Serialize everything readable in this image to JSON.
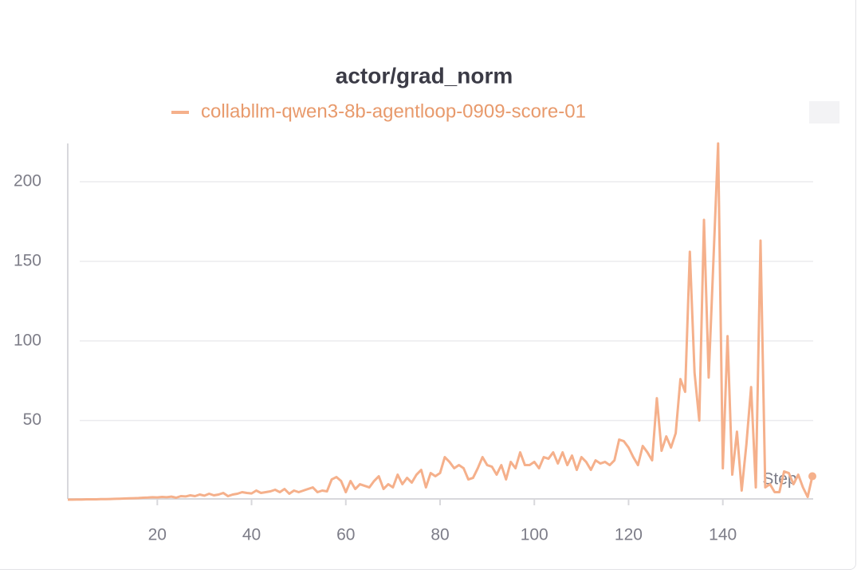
{
  "chart_data": {
    "type": "line",
    "title": "actor/grad_norm",
    "x_label": "Step",
    "xlim": [
      1,
      159
    ],
    "ylim": [
      0,
      224
    ],
    "xticks": [
      20,
      40,
      60,
      80,
      100,
      120,
      140
    ],
    "yticks": [
      50,
      100,
      150,
      200
    ],
    "grid": true,
    "x": [
      1,
      2,
      3,
      4,
      5,
      6,
      7,
      8,
      9,
      10,
      11,
      12,
      13,
      14,
      15,
      16,
      17,
      18,
      19,
      20,
      21,
      22,
      23,
      24,
      25,
      26,
      27,
      28,
      29,
      30,
      31,
      32,
      33,
      34,
      35,
      36,
      37,
      38,
      39,
      40,
      41,
      42,
      43,
      44,
      45,
      46,
      47,
      48,
      49,
      50,
      51,
      52,
      53,
      54,
      55,
      56,
      57,
      58,
      59,
      60,
      61,
      62,
      63,
      64,
      65,
      66,
      67,
      68,
      69,
      70,
      71,
      72,
      73,
      74,
      75,
      76,
      77,
      78,
      79,
      80,
      81,
      82,
      83,
      84,
      85,
      86,
      87,
      88,
      89,
      90,
      91,
      92,
      93,
      94,
      95,
      96,
      97,
      98,
      99,
      100,
      101,
      102,
      103,
      104,
      105,
      106,
      107,
      108,
      109,
      110,
      111,
      112,
      113,
      114,
      115,
      116,
      117,
      118,
      119,
      120,
      121,
      122,
      123,
      124,
      125,
      126,
      127,
      128,
      129,
      130,
      131,
      132,
      133,
      134,
      135,
      136,
      137,
      138,
      139,
      140,
      141,
      142,
      143,
      144,
      145,
      146,
      147,
      148,
      149,
      150,
      151,
      152,
      153,
      154,
      155,
      156,
      157,
      158,
      159
    ],
    "series": [
      {
        "name": "collabllm-qwen3-8b-agentloop-0909-score-01",
        "color": "#f5b08b",
        "values": [
          0.3,
          0.3,
          0.4,
          0.4,
          0.5,
          0.5,
          0.5,
          0.6,
          0.6,
          0.7,
          0.8,
          0.9,
          1,
          1.1,
          1.2,
          1.3,
          1.5,
          1.6,
          1.8,
          1.7,
          2,
          1.8,
          2.2,
          1.5,
          2.5,
          2.3,
          3,
          2.5,
          3.5,
          2.8,
          4,
          3,
          3.5,
          4.5,
          2.5,
          3.5,
          4,
          5,
          4.5,
          4.2,
          6,
          4.5,
          5,
          5.5,
          6.5,
          5,
          7,
          4,
          6,
          5,
          6,
          7,
          8,
          5,
          6,
          5.5,
          13,
          14.5,
          12,
          5,
          12,
          7,
          10,
          9,
          8,
          12,
          15,
          7,
          10,
          8,
          16,
          10,
          14,
          11,
          16,
          19,
          8,
          17,
          15,
          17,
          27,
          24,
          20,
          22,
          20,
          13,
          14,
          20,
          27,
          22,
          21,
          16,
          22,
          13,
          24,
          20,
          30,
          22,
          22,
          24,
          20,
          27,
          26,
          30,
          23,
          30,
          22,
          28,
          19,
          27,
          24,
          19,
          25,
          23,
          24,
          22,
          25,
          38,
          37,
          33,
          27,
          22,
          34,
          30,
          25,
          64,
          31,
          40,
          33,
          42,
          76,
          68,
          156,
          80,
          50,
          176,
          77,
          150,
          224,
          20,
          103,
          16,
          43,
          6,
          35,
          71,
          8,
          163,
          8,
          10,
          5,
          5,
          18,
          17,
          10,
          16,
          8,
          2,
          15
        ]
      }
    ]
  }
}
